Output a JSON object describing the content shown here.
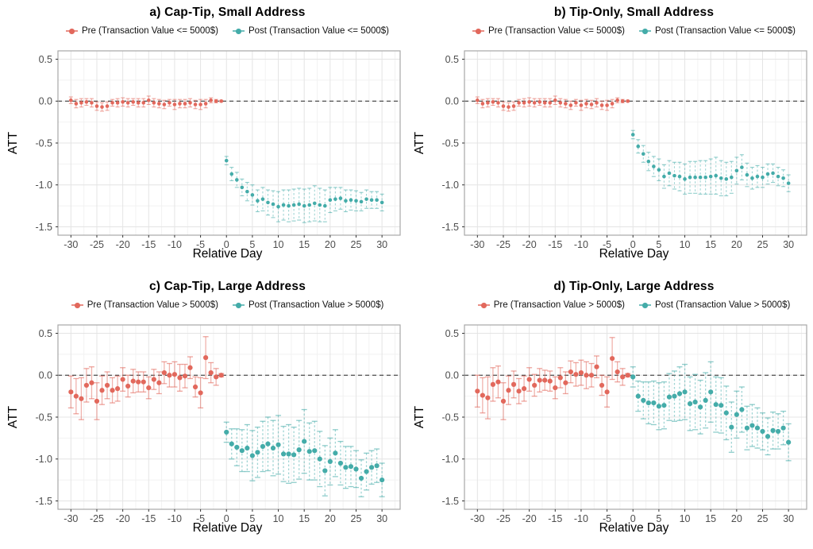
{
  "figure": {
    "xlabel": "Relative Day",
    "ylabel": "ATT",
    "pre_color": "#E2685C",
    "post_color": "#44ACA9"
  },
  "chart_data": [
    {
      "type": "pointrange",
      "title": "a) Cap-Tip, Small Address",
      "xlabel": "Relative Day",
      "ylabel": "ATT",
      "xlim": [
        -32.5,
        33.5
      ],
      "ylim": [
        -1.6,
        0.6
      ],
      "x_ticks": [
        -30,
        -25,
        -20,
        -15,
        -10,
        -5,
        0,
        5,
        10,
        15,
        20,
        25,
        30
      ],
      "x_tick_labels": [
        "-30",
        "-25",
        "-20",
        "-15",
        "-10",
        "-5",
        "0",
        "5",
        "10",
        "15",
        "20",
        "25",
        "30"
      ],
      "y_ticks": [
        0.5,
        0.0,
        -0.5,
        -1.0,
        -1.5
      ],
      "y_tick_labels": [
        "0.5",
        "0.0",
        "-0.5",
        "-1.0",
        "-1.5"
      ],
      "zero_line": 0,
      "grid": true,
      "legend_position": "top",
      "style": {
        "point_r": 2.3,
        "cap_w": 5,
        "bar_w": 1.1
      },
      "series": [
        {
          "name": "pre",
          "label": "Pre (Transaction Value <= 5000$)",
          "color": "#E2685C",
          "line_style": "solid",
          "x": [
            -30,
            -29,
            -28,
            -27,
            -26,
            -25,
            -24,
            -23,
            -22,
            -21,
            -20,
            -19,
            -18,
            -17,
            -16,
            -15,
            -14,
            -13,
            -12,
            -11,
            -10,
            -9,
            -8,
            -7,
            -6,
            -5,
            -4,
            -3,
            -2,
            -1
          ],
          "y": [
            0.01,
            -0.03,
            -0.02,
            -0.01,
            -0.02,
            -0.06,
            -0.07,
            -0.06,
            -0.02,
            -0.02,
            -0.01,
            -0.02,
            -0.01,
            -0.02,
            -0.02,
            0.01,
            -0.02,
            -0.03,
            -0.04,
            -0.02,
            -0.04,
            -0.03,
            -0.03,
            -0.02,
            -0.04,
            -0.04,
            -0.03,
            0.01,
            0.0,
            0.0
          ],
          "err": [
            0.04,
            0.05,
            0.05,
            0.04,
            0.05,
            0.05,
            0.05,
            0.05,
            0.04,
            0.05,
            0.05,
            0.05,
            0.04,
            0.05,
            0.05,
            0.05,
            0.05,
            0.05,
            0.05,
            0.04,
            0.06,
            0.05,
            0.05,
            0.05,
            0.05,
            0.06,
            0.05,
            0.03,
            0.02,
            0.01
          ]
        },
        {
          "name": "post",
          "label": "Post (Transaction Value <= 5000$)",
          "color": "#44ACA9",
          "line_style": "dashed",
          "x": [
            0,
            1,
            2,
            3,
            4,
            5,
            6,
            7,
            8,
            9,
            10,
            11,
            12,
            13,
            14,
            15,
            16,
            17,
            18,
            19,
            20,
            21,
            22,
            23,
            24,
            25,
            26,
            27,
            28,
            29,
            30
          ],
          "y": [
            -0.71,
            -0.87,
            -0.94,
            -1.03,
            -1.08,
            -1.12,
            -1.19,
            -1.17,
            -1.21,
            -1.23,
            -1.26,
            -1.24,
            -1.25,
            -1.24,
            -1.23,
            -1.25,
            -1.24,
            -1.22,
            -1.24,
            -1.25,
            -1.18,
            -1.17,
            -1.16,
            -1.19,
            -1.18,
            -1.19,
            -1.2,
            -1.17,
            -1.18,
            -1.18,
            -1.21
          ],
          "err": [
            0.05,
            0.08,
            0.09,
            0.1,
            0.11,
            0.12,
            0.13,
            0.14,
            0.15,
            0.16,
            0.18,
            0.18,
            0.19,
            0.19,
            0.19,
            0.2,
            0.2,
            0.21,
            0.2,
            0.19,
            0.15,
            0.14,
            0.13,
            0.13,
            0.12,
            0.12,
            0.11,
            0.11,
            0.1,
            0.1,
            0.1
          ]
        }
      ]
    },
    {
      "type": "pointrange",
      "title": "b) Tip-Only, Small Address",
      "xlabel": "Relative Day",
      "ylabel": "ATT",
      "xlim": [
        -32.5,
        33.5
      ],
      "ylim": [
        -1.6,
        0.6
      ],
      "x_ticks": [
        -30,
        -25,
        -20,
        -15,
        -10,
        -5,
        0,
        5,
        10,
        15,
        20,
        25,
        30
      ],
      "x_tick_labels": [
        "-30",
        "-25",
        "-20",
        "-15",
        "-10",
        "-5",
        "0",
        "5",
        "10",
        "15",
        "20",
        "25",
        "30"
      ],
      "y_ticks": [
        0.5,
        0.0,
        -0.5,
        -1.0,
        -1.5
      ],
      "y_tick_labels": [
        "0.5",
        "0.0",
        "-0.5",
        "-1.0",
        "-1.5"
      ],
      "zero_line": 0,
      "grid": true,
      "legend_position": "top",
      "style": {
        "point_r": 2.3,
        "cap_w": 5,
        "bar_w": 1.1
      },
      "series": [
        {
          "name": "pre",
          "label": "Pre (Transaction Value <= 5000$)",
          "color": "#E2685C",
          "line_style": "solid",
          "x": [
            -30,
            -29,
            -28,
            -27,
            -26,
            -25,
            -24,
            -23,
            -22,
            -21,
            -20,
            -19,
            -18,
            -17,
            -16,
            -15,
            -14,
            -13,
            -12,
            -11,
            -10,
            -9,
            -8,
            -7,
            -6,
            -5,
            -4,
            -3,
            -2,
            -1
          ],
          "y": [
            0.01,
            -0.03,
            -0.02,
            -0.01,
            -0.02,
            -0.06,
            -0.07,
            -0.06,
            -0.02,
            -0.02,
            -0.01,
            -0.02,
            -0.01,
            -0.02,
            -0.02,
            0.01,
            -0.02,
            -0.03,
            -0.05,
            -0.02,
            -0.05,
            -0.03,
            -0.04,
            -0.02,
            -0.05,
            -0.05,
            -0.03,
            0.01,
            0.0,
            0.0
          ],
          "err": [
            0.04,
            0.05,
            0.05,
            0.04,
            0.05,
            0.05,
            0.05,
            0.05,
            0.04,
            0.05,
            0.05,
            0.05,
            0.04,
            0.05,
            0.05,
            0.05,
            0.05,
            0.05,
            0.05,
            0.04,
            0.06,
            0.05,
            0.05,
            0.05,
            0.05,
            0.06,
            0.05,
            0.03,
            0.02,
            0.01
          ]
        },
        {
          "name": "post",
          "label": "Post (Transaction Value <= 5000$)",
          "color": "#44ACA9",
          "line_style": "dashed",
          "x": [
            0,
            1,
            2,
            3,
            4,
            5,
            6,
            7,
            8,
            9,
            10,
            11,
            12,
            13,
            14,
            15,
            16,
            17,
            18,
            19,
            20,
            21,
            22,
            23,
            24,
            25,
            26,
            27,
            28,
            29,
            30
          ],
          "y": [
            -0.4,
            -0.54,
            -0.63,
            -0.72,
            -0.78,
            -0.82,
            -0.9,
            -0.86,
            -0.89,
            -0.9,
            -0.93,
            -0.91,
            -0.91,
            -0.91,
            -0.91,
            -0.9,
            -0.89,
            -0.92,
            -0.93,
            -0.91,
            -0.83,
            -0.79,
            -0.88,
            -0.92,
            -0.9,
            -0.91,
            -0.87,
            -0.86,
            -0.9,
            -0.92,
            -0.98
          ],
          "err": [
            0.05,
            0.08,
            0.1,
            0.11,
            0.12,
            0.13,
            0.14,
            0.15,
            0.16,
            0.17,
            0.18,
            0.19,
            0.19,
            0.2,
            0.2,
            0.21,
            0.22,
            0.21,
            0.2,
            0.19,
            0.16,
            0.15,
            0.14,
            0.13,
            0.13,
            0.12,
            0.12,
            0.11,
            0.11,
            0.1,
            0.1
          ]
        }
      ]
    },
    {
      "type": "pointrange",
      "title": "c) Cap-Tip, Large Address",
      "xlabel": "Relative Day",
      "ylabel": "ATT",
      "xlim": [
        -32.5,
        33.5
      ],
      "ylim": [
        -1.6,
        0.6
      ],
      "x_ticks": [
        -30,
        -25,
        -20,
        -15,
        -10,
        -5,
        0,
        5,
        10,
        15,
        20,
        25,
        30
      ],
      "x_tick_labels": [
        "-30",
        "-25",
        "-20",
        "-15",
        "-10",
        "-5",
        "0",
        "5",
        "10",
        "15",
        "20",
        "25",
        "30"
      ],
      "y_ticks": [
        0.5,
        0.0,
        -0.5,
        -1.0,
        -1.5
      ],
      "y_tick_labels": [
        "0.5",
        "0.0",
        "-0.5",
        "-1.0",
        "-1.5"
      ],
      "zero_line": 0,
      "grid": true,
      "legend_position": "top",
      "style": {
        "point_r": 3.1,
        "cap_w": 7,
        "bar_w": 1.3
      },
      "series": [
        {
          "name": "pre",
          "label": "Pre (Transaction Value > 5000$)",
          "color": "#E2685C",
          "line_style": "solid",
          "x": [
            -30,
            -29,
            -28,
            -27,
            -26,
            -25,
            -24,
            -23,
            -22,
            -21,
            -20,
            -19,
            -18,
            -17,
            -16,
            -15,
            -14,
            -13,
            -12,
            -11,
            -10,
            -9,
            -8,
            -7,
            -6,
            -5,
            -4,
            -3,
            -2,
            -1
          ],
          "y": [
            -0.2,
            -0.25,
            -0.28,
            -0.12,
            -0.09,
            -0.31,
            -0.18,
            -0.12,
            -0.18,
            -0.16,
            -0.05,
            -0.13,
            -0.07,
            -0.08,
            -0.08,
            -0.15,
            -0.05,
            -0.09,
            0.03,
            0.0,
            0.01,
            -0.03,
            -0.01,
            0.09,
            -0.14,
            -0.21,
            0.21,
            0.03,
            -0.02,
            0.0
          ],
          "err": [
            0.19,
            0.21,
            0.25,
            0.2,
            0.19,
            0.22,
            0.17,
            0.16,
            0.15,
            0.15,
            0.14,
            0.13,
            0.14,
            0.12,
            0.12,
            0.13,
            0.12,
            0.13,
            0.13,
            0.14,
            0.15,
            0.16,
            0.14,
            0.13,
            0.12,
            0.18,
            0.25,
            0.12,
            0.1,
            0.02
          ]
        },
        {
          "name": "post",
          "label": "Post (Transaction Value > 5000$)",
          "color": "#44ACA9",
          "line_style": "dashed",
          "x": [
            0,
            1,
            2,
            3,
            4,
            5,
            6,
            7,
            8,
            9,
            10,
            11,
            12,
            13,
            14,
            15,
            16,
            17,
            18,
            19,
            20,
            21,
            22,
            23,
            24,
            25,
            26,
            27,
            28,
            29,
            30
          ],
          "y": [
            -0.68,
            -0.82,
            -0.86,
            -0.9,
            -0.87,
            -0.96,
            -0.92,
            -0.85,
            -0.82,
            -0.87,
            -0.83,
            -0.94,
            -0.94,
            -0.95,
            -0.89,
            -0.79,
            -0.91,
            -0.9,
            -1.0,
            -1.14,
            -1.03,
            -0.93,
            -1.05,
            -1.1,
            -1.09,
            -1.12,
            -1.23,
            -1.15,
            -1.1,
            -1.08,
            -1.25
          ],
          "err": [
            0.12,
            0.18,
            0.22,
            0.25,
            0.28,
            0.3,
            0.3,
            0.3,
            0.32,
            0.33,
            0.35,
            0.33,
            0.35,
            0.33,
            0.35,
            0.38,
            0.34,
            0.35,
            0.33,
            0.3,
            0.28,
            0.28,
            0.26,
            0.25,
            0.24,
            0.22,
            0.22,
            0.22,
            0.2,
            0.2,
            0.2
          ]
        }
      ]
    },
    {
      "type": "pointrange",
      "title": "d) Tip-Only, Large Address",
      "xlabel": "Relative Day",
      "ylabel": "ATT",
      "xlim": [
        -32.5,
        33.5
      ],
      "ylim": [
        -1.6,
        0.6
      ],
      "x_ticks": [
        -30,
        -25,
        -20,
        -15,
        -10,
        -5,
        0,
        5,
        10,
        15,
        20,
        25,
        30
      ],
      "x_tick_labels": [
        "-30",
        "-25",
        "-20",
        "-15",
        "-10",
        "-5",
        "0",
        "5",
        "10",
        "15",
        "20",
        "25",
        "30"
      ],
      "y_ticks": [
        0.5,
        0.0,
        -0.5,
        -1.0,
        -1.5
      ],
      "y_tick_labels": [
        "0.5",
        "0.0",
        "-0.5",
        "-1.0",
        "-1.5"
      ],
      "zero_line": 0,
      "grid": true,
      "legend_position": "top",
      "style": {
        "point_r": 3.1,
        "cap_w": 7,
        "bar_w": 1.3
      },
      "series": [
        {
          "name": "pre",
          "label": "Pre (Transaction Value > 5000$)",
          "color": "#E2685C",
          "line_style": "solid",
          "x": [
            -30,
            -29,
            -28,
            -27,
            -26,
            -25,
            -24,
            -23,
            -22,
            -21,
            -20,
            -19,
            -18,
            -17,
            -16,
            -15,
            -14,
            -13,
            -12,
            -11,
            -10,
            -9,
            -8,
            -7,
            -6,
            -5,
            -4,
            -3,
            -2,
            -1
          ],
          "y": [
            -0.19,
            -0.24,
            -0.27,
            -0.11,
            -0.08,
            -0.31,
            -0.18,
            -0.11,
            -0.19,
            -0.16,
            -0.05,
            -0.12,
            -0.06,
            -0.06,
            -0.07,
            -0.15,
            -0.03,
            -0.09,
            0.04,
            0.01,
            0.03,
            0.0,
            0.0,
            0.1,
            -0.12,
            -0.2,
            0.2,
            0.04,
            -0.02,
            0.0
          ],
          "err": [
            0.19,
            0.21,
            0.25,
            0.2,
            0.19,
            0.22,
            0.17,
            0.16,
            0.15,
            0.15,
            0.14,
            0.13,
            0.14,
            0.12,
            0.12,
            0.13,
            0.12,
            0.13,
            0.13,
            0.14,
            0.15,
            0.16,
            0.14,
            0.13,
            0.12,
            0.18,
            0.25,
            0.12,
            0.1,
            0.02
          ]
        },
        {
          "name": "post",
          "label": "Post (Transaction Value > 5000$)",
          "color": "#44ACA9",
          "line_style": "dashed",
          "x": [
            0,
            1,
            2,
            3,
            4,
            5,
            6,
            7,
            8,
            9,
            10,
            11,
            12,
            13,
            14,
            15,
            16,
            17,
            18,
            19,
            20,
            21,
            22,
            23,
            24,
            25,
            26,
            27,
            28,
            29,
            30
          ],
          "y": [
            -0.02,
            -0.25,
            -0.3,
            -0.33,
            -0.33,
            -0.37,
            -0.36,
            -0.26,
            -0.25,
            -0.22,
            -0.2,
            -0.34,
            -0.32,
            -0.38,
            -0.3,
            -0.2,
            -0.35,
            -0.36,
            -0.45,
            -0.62,
            -0.47,
            -0.41,
            -0.63,
            -0.6,
            -0.63,
            -0.67,
            -0.73,
            -0.66,
            -0.67,
            -0.63,
            -0.8
          ],
          "err": [
            0.12,
            0.18,
            0.22,
            0.25,
            0.26,
            0.28,
            0.28,
            0.28,
            0.3,
            0.32,
            0.33,
            0.32,
            0.33,
            0.32,
            0.33,
            0.36,
            0.33,
            0.33,
            0.32,
            0.3,
            0.28,
            0.27,
            0.26,
            0.25,
            0.24,
            0.22,
            0.22,
            0.22,
            0.21,
            0.2,
            0.22
          ]
        }
      ]
    }
  ]
}
